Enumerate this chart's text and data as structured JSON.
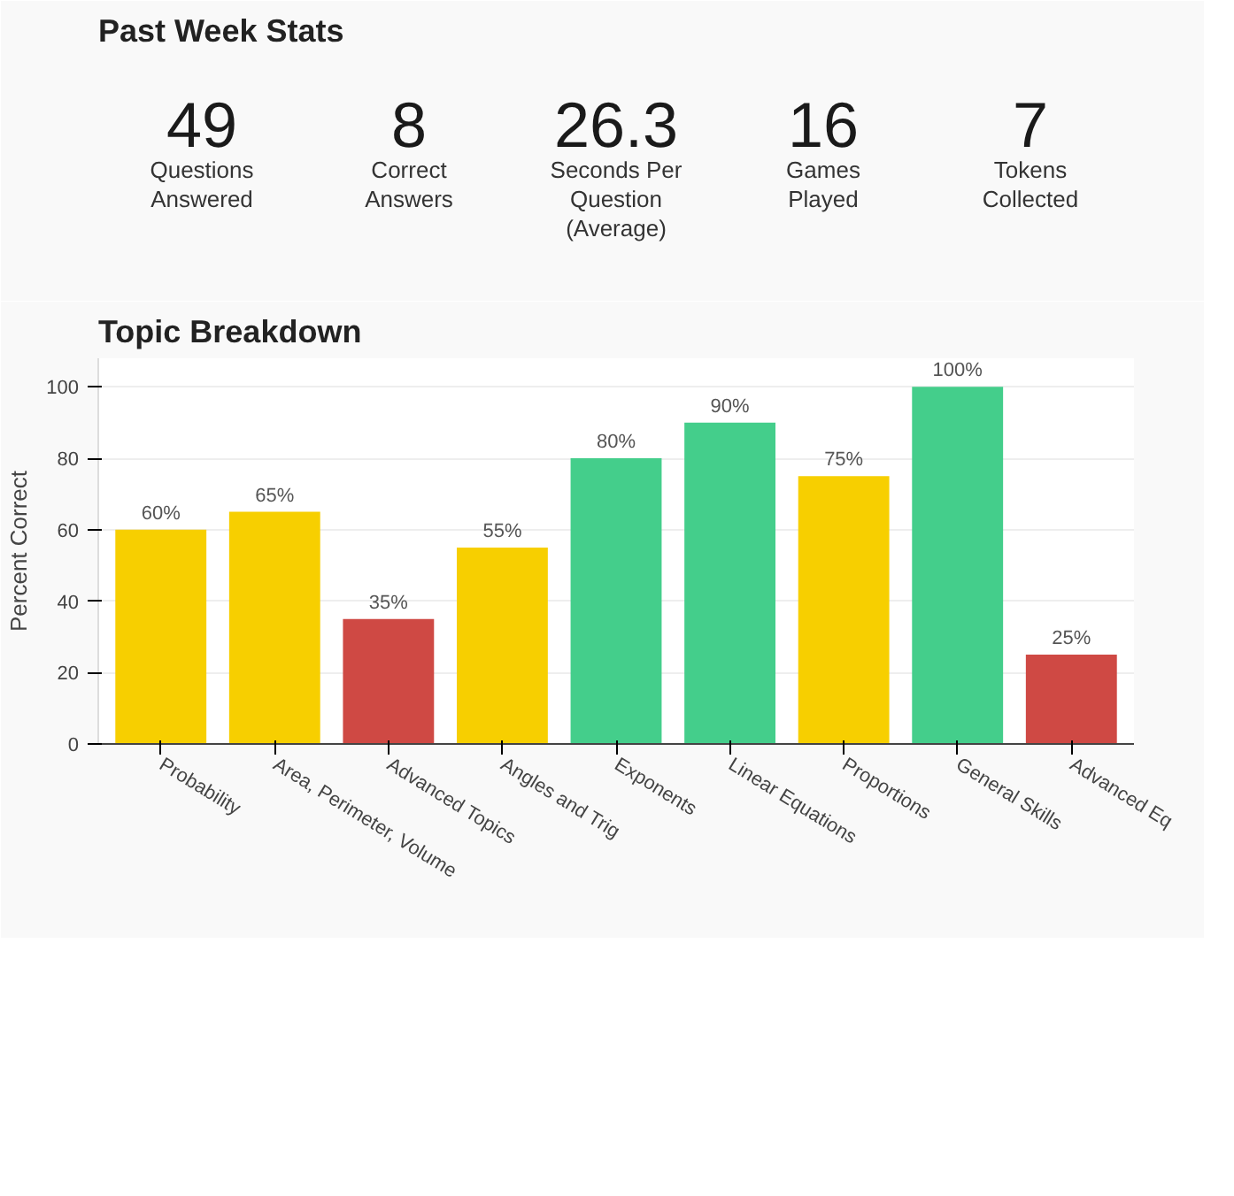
{
  "chart_data": [
    {
      "type": "other",
      "title": "Past Week Stats",
      "annotations": [
        "49",
        "Questions\nAnswered",
        "8",
        "Correct\nAnswers",
        "26.3",
        "Seconds Per\nQuestion\n(Average)",
        "16",
        "Games\nPlayed",
        "7",
        "Tokens\nCollected"
      ]
    },
    {
      "type": "bar",
      "title": "Topic Breakdown",
      "ylabel": "Percent Correct",
      "categories": [
        "Probability",
        "Area, Perimeter, Volume",
        "Advanced Topics",
        "Angles and Trig",
        "Exponents",
        "Linear Equations",
        "Proportions",
        "General Skills",
        "Advanced Eq"
      ],
      "values": [
        60,
        65,
        35,
        55,
        80,
        90,
        75,
        100,
        25
      ],
      "colors": [
        "#f7cf00",
        "#f7cf00",
        "#cf4944",
        "#f7cf00",
        "#44ce8b",
        "#44ce8b",
        "#f7cf00",
        "#44ce8b",
        "#cf4944"
      ],
      "value_labels": [
        "60%",
        "65%",
        "35%",
        "55%",
        "80%",
        "90%",
        "75%",
        "100%",
        "25%"
      ],
      "ylim": [
        0,
        108
      ],
      "yticks": [
        0,
        20,
        40,
        60,
        80,
        100
      ],
      "grid": "y"
    }
  ]
}
